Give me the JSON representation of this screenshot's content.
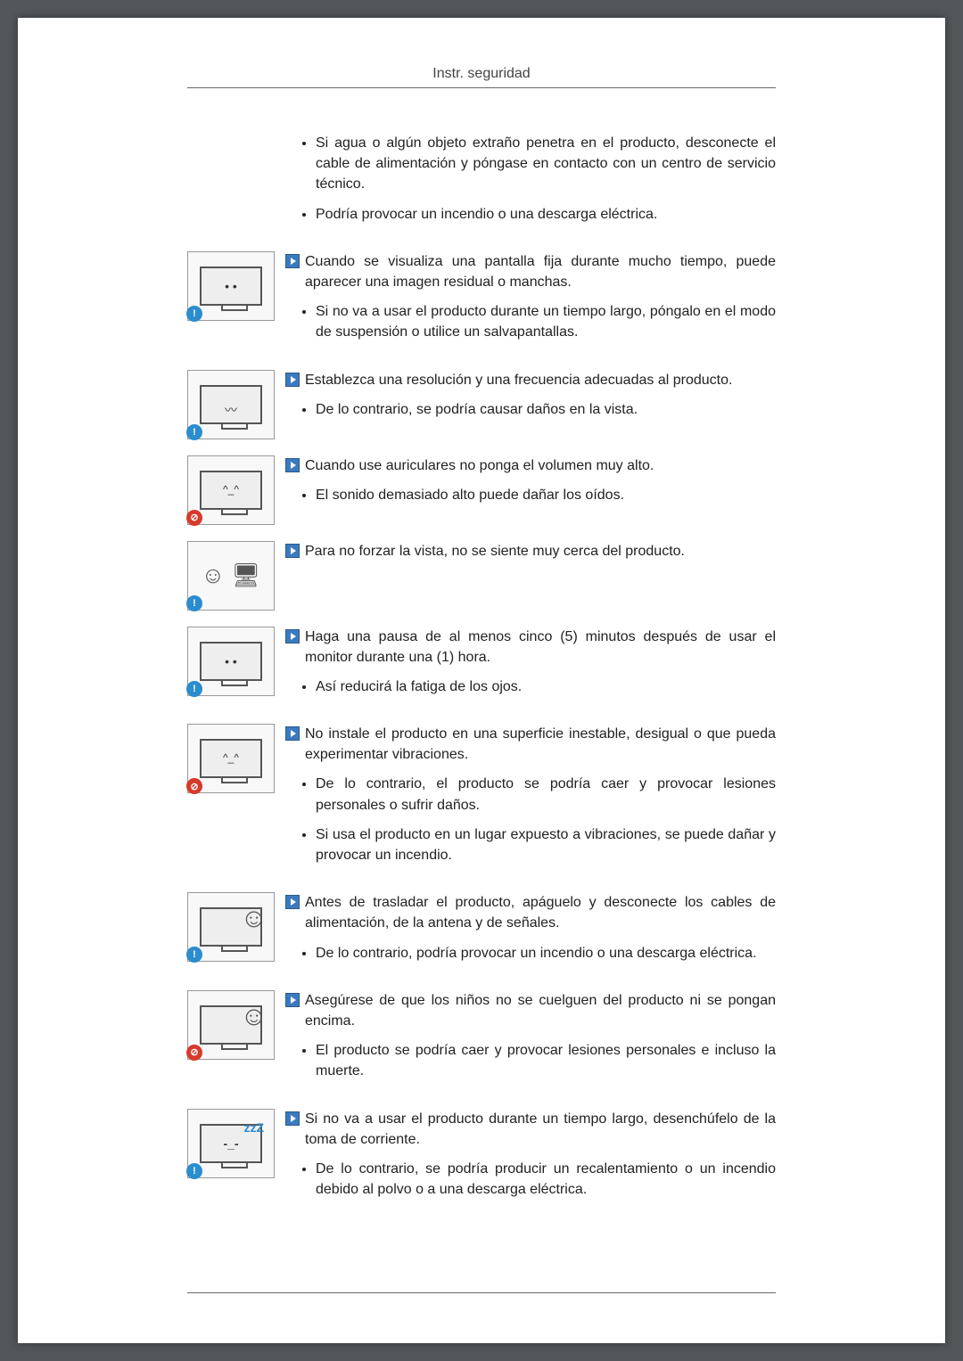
{
  "header": {
    "title": "Instr. seguridad"
  },
  "sections": [
    {
      "icon": null,
      "heading": null,
      "bullets": [
        "Si agua o algún objeto extraño penetra en el producto, desconecte el cable de alimentación y póngase en contacto con un centro de servicio técnico.",
        "Podría provocar un incendio o una descarga eléctrica."
      ]
    },
    {
      "icon": {
        "kind": "monitor-dots",
        "badge": "info"
      },
      "heading": "Cuando se visualiza una pantalla fija durante mucho tiempo, puede aparecer una imagen residual o manchas.",
      "bullets": [
        "Si no va a usar el producto durante un tiempo largo, póngalo en el modo de suspensión o utilice un salvapantallas."
      ]
    },
    {
      "icon": {
        "kind": "monitor-wave",
        "badge": "info"
      },
      "heading": "Establezca una resolución y una frecuencia adecuadas al producto.",
      "bullets": [
        "De lo contrario, se podría causar daños en la vista."
      ]
    },
    {
      "icon": {
        "kind": "monitor-headphones",
        "badge": "no"
      },
      "heading": "Cuando use auriculares no ponga el volumen muy alto.",
      "bullets": [
        "El sonido demasiado alto puede dañar los oídos."
      ]
    },
    {
      "icon": {
        "kind": "sit-close",
        "badge": "info"
      },
      "heading": "Para no forzar la vista, no se siente muy cerca del producto.",
      "bullets": []
    },
    {
      "icon": {
        "kind": "monitor-break",
        "badge": "info"
      },
      "heading": "Haga una pausa de al menos cinco (5) minutos después de usar el monitor durante una (1) hora.",
      "bullets": [
        "Así reducirá la fatiga de los ojos."
      ]
    },
    {
      "icon": {
        "kind": "monitor-unstable",
        "badge": "no"
      },
      "heading": "No instale el producto en una superficie inestable, desigual o que pueda experimentar vibraciones.",
      "bullets": [
        "De lo contrario, el producto se podría caer y provocar lesiones personales o sufrir daños.",
        "Si usa el producto en un lugar expuesto a vibraciones, se puede dañar y provocar un incendio."
      ]
    },
    {
      "icon": {
        "kind": "move-child",
        "badge": "info"
      },
      "heading": "Antes de trasladar el producto, apáguelo y desconecte los cables de alimentación, de la antena y de señales.",
      "bullets": [
        "De lo contrario, podría provocar un incendio o una descarga eléctrica."
      ]
    },
    {
      "icon": {
        "kind": "hang-child",
        "badge": "no"
      },
      "heading": "Asegúrese de que los niños no se cuelguen del producto ni se pongan encima.",
      "bullets": [
        "El producto se podría caer y provocar lesiones personales e incluso la muerte."
      ]
    },
    {
      "icon": {
        "kind": "sleep-zzz",
        "badge": "info"
      },
      "heading": "Si no va a usar el producto durante un tiempo largo, desenchúfelo de la toma de corriente.",
      "bullets": [
        "De lo contrario, se podría producir un recalentamiento o un incendio debido al polvo o a una descarga eléctrica."
      ]
    }
  ]
}
